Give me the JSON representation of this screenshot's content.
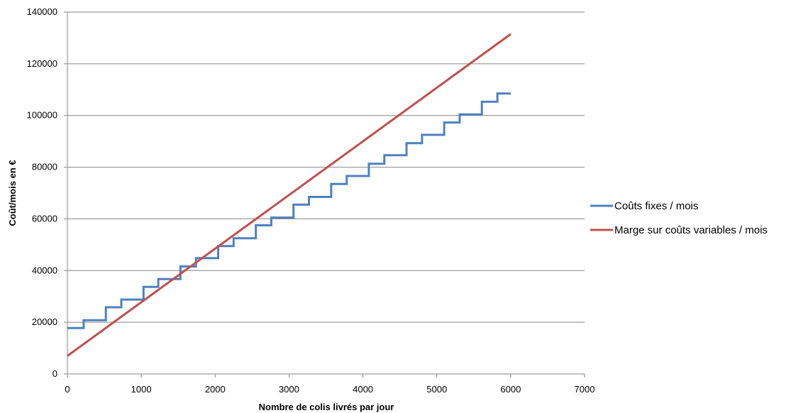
{
  "chart_data": {
    "type": "line",
    "xlabel": "Nombre de colis livrés par jour",
    "ylabel": "Coût/mois en €",
    "xlim": [
      0,
      7000
    ],
    "ylim": [
      0,
      140000
    ],
    "x_ticks": [
      "0",
      "1000",
      "2000",
      "3000",
      "4000",
      "5000",
      "6000",
      "7000"
    ],
    "y_ticks": [
      "0",
      "20000",
      "40000",
      "60000",
      "80000",
      "100000",
      "120000",
      "140000"
    ],
    "grid": "horizontal",
    "legend_position": "right",
    "series": [
      {
        "name": "Coûts fixes / mois",
        "color": "#4F81BD",
        "step": true,
        "points": [
          [
            0,
            17800
          ],
          [
            220,
            17800
          ],
          [
            220,
            20800
          ],
          [
            520,
            20800
          ],
          [
            520,
            25800
          ],
          [
            730,
            25800
          ],
          [
            730,
            28800
          ],
          [
            1030,
            28800
          ],
          [
            1030,
            33700
          ],
          [
            1230,
            33700
          ],
          [
            1230,
            36700
          ],
          [
            1530,
            36700
          ],
          [
            1530,
            41600
          ],
          [
            1740,
            41600
          ],
          [
            1740,
            44800
          ],
          [
            2040,
            44800
          ],
          [
            2040,
            49500
          ],
          [
            2250,
            49500
          ],
          [
            2250,
            52500
          ],
          [
            2550,
            52500
          ],
          [
            2550,
            57500
          ],
          [
            2760,
            57500
          ],
          [
            2760,
            60500
          ],
          [
            3060,
            60500
          ],
          [
            3060,
            65500
          ],
          [
            3270,
            65500
          ],
          [
            3270,
            68500
          ],
          [
            3570,
            68500
          ],
          [
            3570,
            73500
          ],
          [
            3780,
            73500
          ],
          [
            3780,
            76600
          ],
          [
            4080,
            76600
          ],
          [
            4080,
            81300
          ],
          [
            4290,
            81300
          ],
          [
            4290,
            84600
          ],
          [
            4590,
            84600
          ],
          [
            4590,
            89300
          ],
          [
            4800,
            89300
          ],
          [
            4800,
            92500
          ],
          [
            5100,
            92500
          ],
          [
            5100,
            97300
          ],
          [
            5310,
            97300
          ],
          [
            5310,
            100400
          ],
          [
            5610,
            100400
          ],
          [
            5610,
            105300
          ],
          [
            5820,
            105300
          ],
          [
            5820,
            108500
          ],
          [
            6000,
            108500
          ]
        ]
      },
      {
        "name": "Marge sur coûts variables / mois",
        "color": "#C0504D",
        "step": false,
        "points": [
          [
            0,
            7000
          ],
          [
            6000,
            131500
          ]
        ]
      }
    ]
  }
}
